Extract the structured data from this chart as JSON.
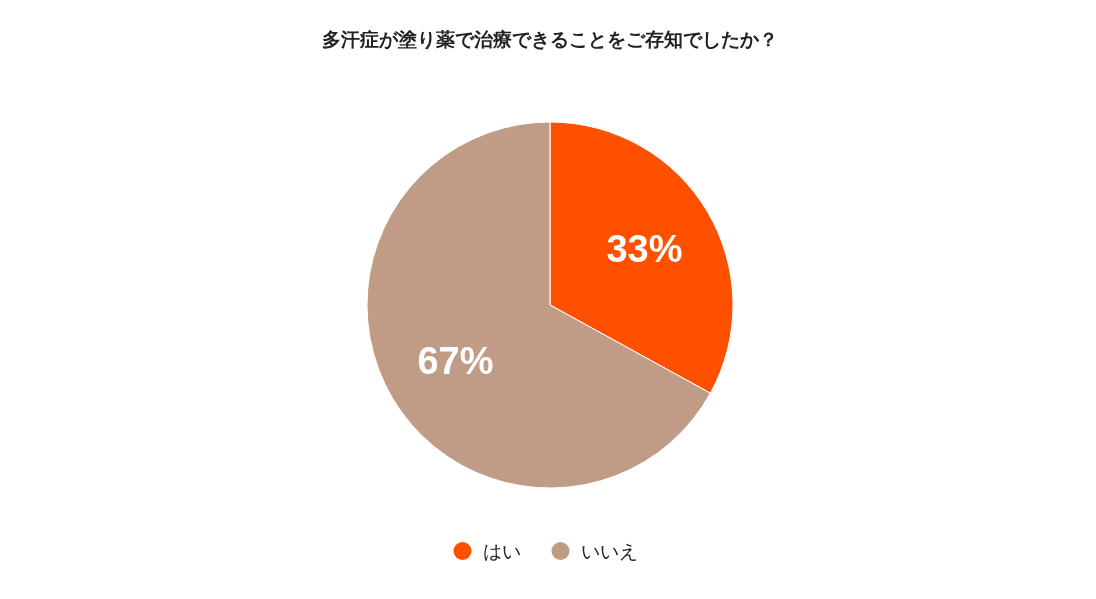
{
  "chart_data": {
    "type": "pie",
    "title": "多汗症が塗り薬で治療できることをご存知でしたか？",
    "categories": [
      "はい",
      "いいえ"
    ],
    "values": [
      33,
      67
    ],
    "colors": [
      "#ff5000",
      "#c09c86"
    ],
    "value_labels": [
      "33%",
      "67%"
    ],
    "legend": "bottom"
  }
}
